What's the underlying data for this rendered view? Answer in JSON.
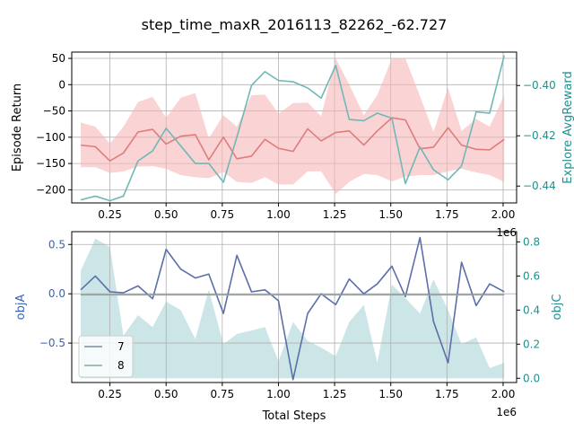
{
  "chart_data": [
    {
      "type": "line",
      "title": "step_time_maxR_2016113_82262_-62.727",
      "xlabel": "",
      "ylabel": "Episode Return",
      "y2label": "Explore AvgReward",
      "x_offset_label": "1e6",
      "xlim": [
        0.08,
        2.06
      ],
      "ylim": [
        -225,
        62
      ],
      "y2lim": [
        -0.4467,
        -0.3867
      ],
      "x_ticks": [
        0.25,
        0.5,
        0.75,
        1.0,
        1.25,
        1.5,
        1.75,
        2.0
      ],
      "x_tick_labels": [
        "0.25",
        "0.50",
        "0.75",
        "1.00",
        "1.25",
        "1.50",
        "1.75",
        "2.00"
      ],
      "y_ticks": [
        50,
        0,
        -50,
        -100,
        -150,
        -200
      ],
      "y_tick_labels": [
        "50",
        "0",
        "−50",
        "−100",
        "−150",
        "−200"
      ],
      "y2_ticks": [
        -0.4,
        -0.42,
        -0.44
      ],
      "y2_tick_labels": [
        "−0.40",
        "−0.42",
        "−0.44"
      ],
      "grid": true,
      "x": [
        0.12,
        0.185,
        0.25,
        0.31,
        0.375,
        0.44,
        0.5,
        0.565,
        0.63,
        0.69,
        0.755,
        0.815,
        0.88,
        0.94,
        1.0,
        1.065,
        1.13,
        1.19,
        1.255,
        1.315,
        1.38,
        1.44,
        1.505,
        1.565,
        1.63,
        1.69,
        1.755,
        1.815,
        1.88,
        1.94,
        2.005
      ],
      "series": [
        {
          "name": "Episode Return",
          "axis": "left",
          "color": "#e07b7b",
          "values": [
            -115,
            -118,
            -145,
            -130,
            -90,
            -85,
            -113,
            -98,
            -95,
            -143,
            -100,
            -141,
            -136,
            -104,
            -121,
            -127,
            -84,
            -107,
            -91,
            -88,
            -115,
            -88,
            -63,
            -67,
            -122,
            -119,
            -82,
            -115,
            -123,
            -124,
            -104
          ],
          "band_upper": [
            -72,
            -80,
            -112,
            -80,
            -33,
            -23,
            -63,
            -25,
            -16,
            -102,
            -58,
            -80,
            -20,
            -19,
            -55,
            -35,
            -34,
            -60,
            50,
            0,
            -58,
            -20,
            50,
            50,
            -22,
            -90,
            -6,
            -88,
            -65,
            -80,
            -20
          ],
          "band_lower": [
            -157,
            -157,
            -168,
            -165,
            -156,
            -155,
            -160,
            -172,
            -176,
            -178,
            -166,
            -185,
            -187,
            -176,
            -190,
            -190,
            -165,
            -165,
            -208,
            -185,
            -170,
            -172,
            -184,
            -175,
            -172,
            -172,
            -165,
            -160,
            -167,
            -172,
            -185
          ]
        },
        {
          "name": "Explore AvgReward",
          "axis": "right",
          "color": "#72b7b7",
          "values": [
            -0.4455,
            -0.444,
            -0.4458,
            -0.444,
            -0.43,
            -0.426,
            -0.417,
            -0.424,
            -0.431,
            -0.431,
            -0.4385,
            -0.4205,
            -0.4,
            -0.3945,
            -0.398,
            -0.3985,
            -0.401,
            -0.405,
            -0.392,
            -0.4135,
            -0.414,
            -0.411,
            -0.413,
            -0.439,
            -0.4245,
            -0.4335,
            -0.4375,
            -0.432,
            -0.4105,
            -0.411,
            -0.388
          ]
        }
      ]
    },
    {
      "type": "line",
      "title": "",
      "xlabel": "Total Steps",
      "ylabel": "objA",
      "y2label": "objC",
      "x_offset_label": "1e6",
      "xlim": [
        0.08,
        2.06
      ],
      "ylim": [
        -0.9,
        0.63
      ],
      "y2lim": [
        -0.025,
        0.86
      ],
      "x_ticks": [
        0.25,
        0.5,
        0.75,
        1.0,
        1.25,
        1.5,
        1.75,
        2.0
      ],
      "x_tick_labels": [
        "0.25",
        "0.50",
        "0.75",
        "1.00",
        "1.25",
        "1.50",
        "1.75",
        "2.00"
      ],
      "y_ticks": [
        0.5,
        0.0,
        -0.5
      ],
      "y_tick_labels": [
        "0.5",
        "0.0",
        "−0.5"
      ],
      "y2_ticks": [
        0.8,
        0.6,
        0.4,
        0.2,
        0.0
      ],
      "y2_tick_labels": [
        "0.8",
        "0.6",
        "0.4",
        "0.2",
        "0.0"
      ],
      "grid": true,
      "legend_position": "lower-left",
      "legend": [
        "7",
        "8"
      ],
      "x": [
        0.12,
        0.185,
        0.25,
        0.31,
        0.375,
        0.44,
        0.5,
        0.565,
        0.63,
        0.69,
        0.755,
        0.815,
        0.88,
        0.94,
        1.0,
        1.065,
        1.13,
        1.19,
        1.255,
        1.315,
        1.38,
        1.44,
        1.505,
        1.565,
        1.63,
        1.69,
        1.755,
        1.815,
        1.88,
        1.94,
        2.005
      ],
      "series": [
        {
          "name": "objA",
          "axis": "left",
          "color": "#5b6fa8",
          "values": [
            0.04,
            0.18,
            0.02,
            0.01,
            0.08,
            -0.05,
            0.45,
            0.25,
            0.16,
            0.2,
            -0.2,
            0.39,
            0.02,
            0.04,
            -0.07,
            -0.87,
            -0.2,
            0.0,
            -0.11,
            0.15,
            0.0,
            0.1,
            0.28,
            -0.03,
            0.57,
            -0.28,
            -0.7,
            0.32,
            -0.12,
            0.1,
            0.02
          ]
        },
        {
          "name": "8",
          "axis": "left",
          "color": "#9aa2a2",
          "values": [
            -0.01,
            -0.01,
            -0.01,
            -0.01,
            -0.01,
            -0.01,
            -0.01,
            -0.01,
            -0.01,
            -0.01,
            -0.01,
            -0.01,
            -0.01,
            -0.01,
            -0.01,
            -0.01,
            -0.01,
            -0.01,
            -0.01,
            -0.01,
            -0.01,
            -0.01,
            -0.01,
            -0.01,
            -0.01,
            -0.01,
            -0.01,
            -0.01,
            -0.01,
            -0.01,
            -0.01
          ]
        },
        {
          "name": "objC",
          "axis": "right",
          "type": "area",
          "color": "#cce6e8",
          "values": [
            0.63,
            0.82,
            0.77,
            0.25,
            0.37,
            0.3,
            0.45,
            0.4,
            0.23,
            0.52,
            0.2,
            0.26,
            0.28,
            0.3,
            0.1,
            0.33,
            0.22,
            0.18,
            0.13,
            0.33,
            0.43,
            0.09,
            0.55,
            0.47,
            0.38,
            0.58,
            0.4,
            0.2,
            0.24,
            0.06,
            0.09
          ]
        }
      ]
    }
  ]
}
